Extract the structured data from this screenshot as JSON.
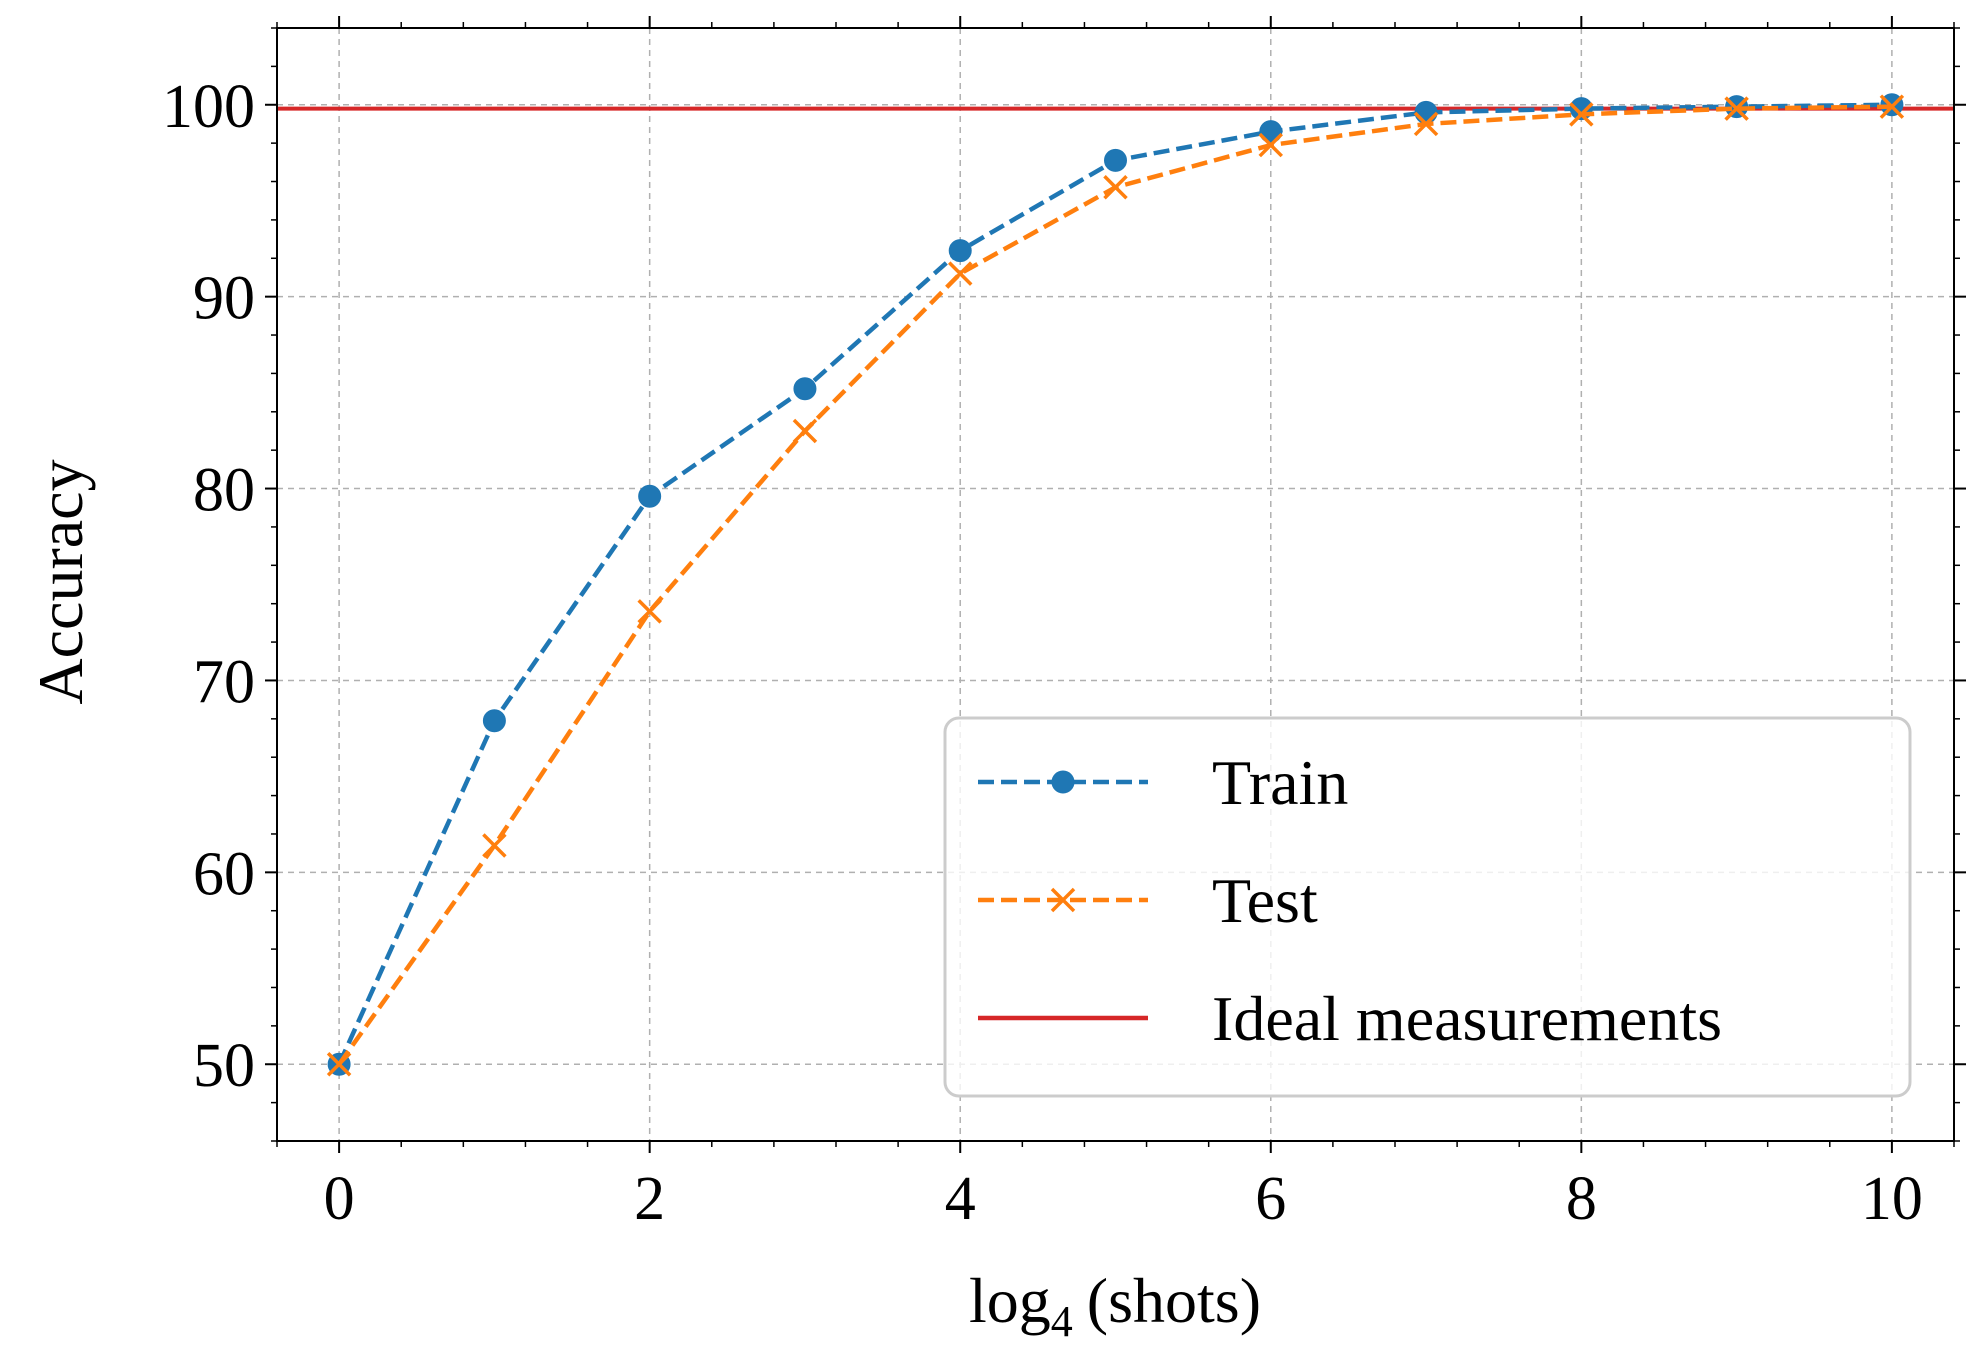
{
  "chart_data": {
    "type": "line",
    "title": "",
    "xlabel": "log",
    "xlabel_subscript": "4",
    "xlabel_suffix": "(shots)",
    "ylabel": "Accuracy",
    "xlim": [
      -0.4,
      10.4
    ],
    "ylim": [
      46,
      104
    ],
    "xticks": [
      0,
      2,
      4,
      6,
      8,
      10
    ],
    "yticks": [
      50,
      60,
      70,
      80,
      90,
      100
    ],
    "grid": true,
    "legend_position": "lower-right",
    "x": [
      0,
      1,
      2,
      3,
      4,
      5,
      6,
      7,
      8,
      9,
      10
    ],
    "series": [
      {
        "name": "Train",
        "style": "dashed",
        "marker": "circle",
        "color": "#1f77b4",
        "values": [
          50.0,
          67.9,
          79.6,
          85.2,
          92.4,
          97.1,
          98.6,
          99.6,
          99.8,
          99.9,
          100.0
        ]
      },
      {
        "name": "Test",
        "style": "dashed",
        "marker": "x",
        "color": "#ff7f0e",
        "values": [
          50.0,
          61.4,
          73.6,
          83.0,
          91.2,
          95.7,
          97.9,
          99.0,
          99.5,
          99.8,
          99.9
        ]
      }
    ],
    "hlines": [
      {
        "name": "Ideal measurements",
        "value": 99.8,
        "color": "#d62728"
      }
    ]
  }
}
